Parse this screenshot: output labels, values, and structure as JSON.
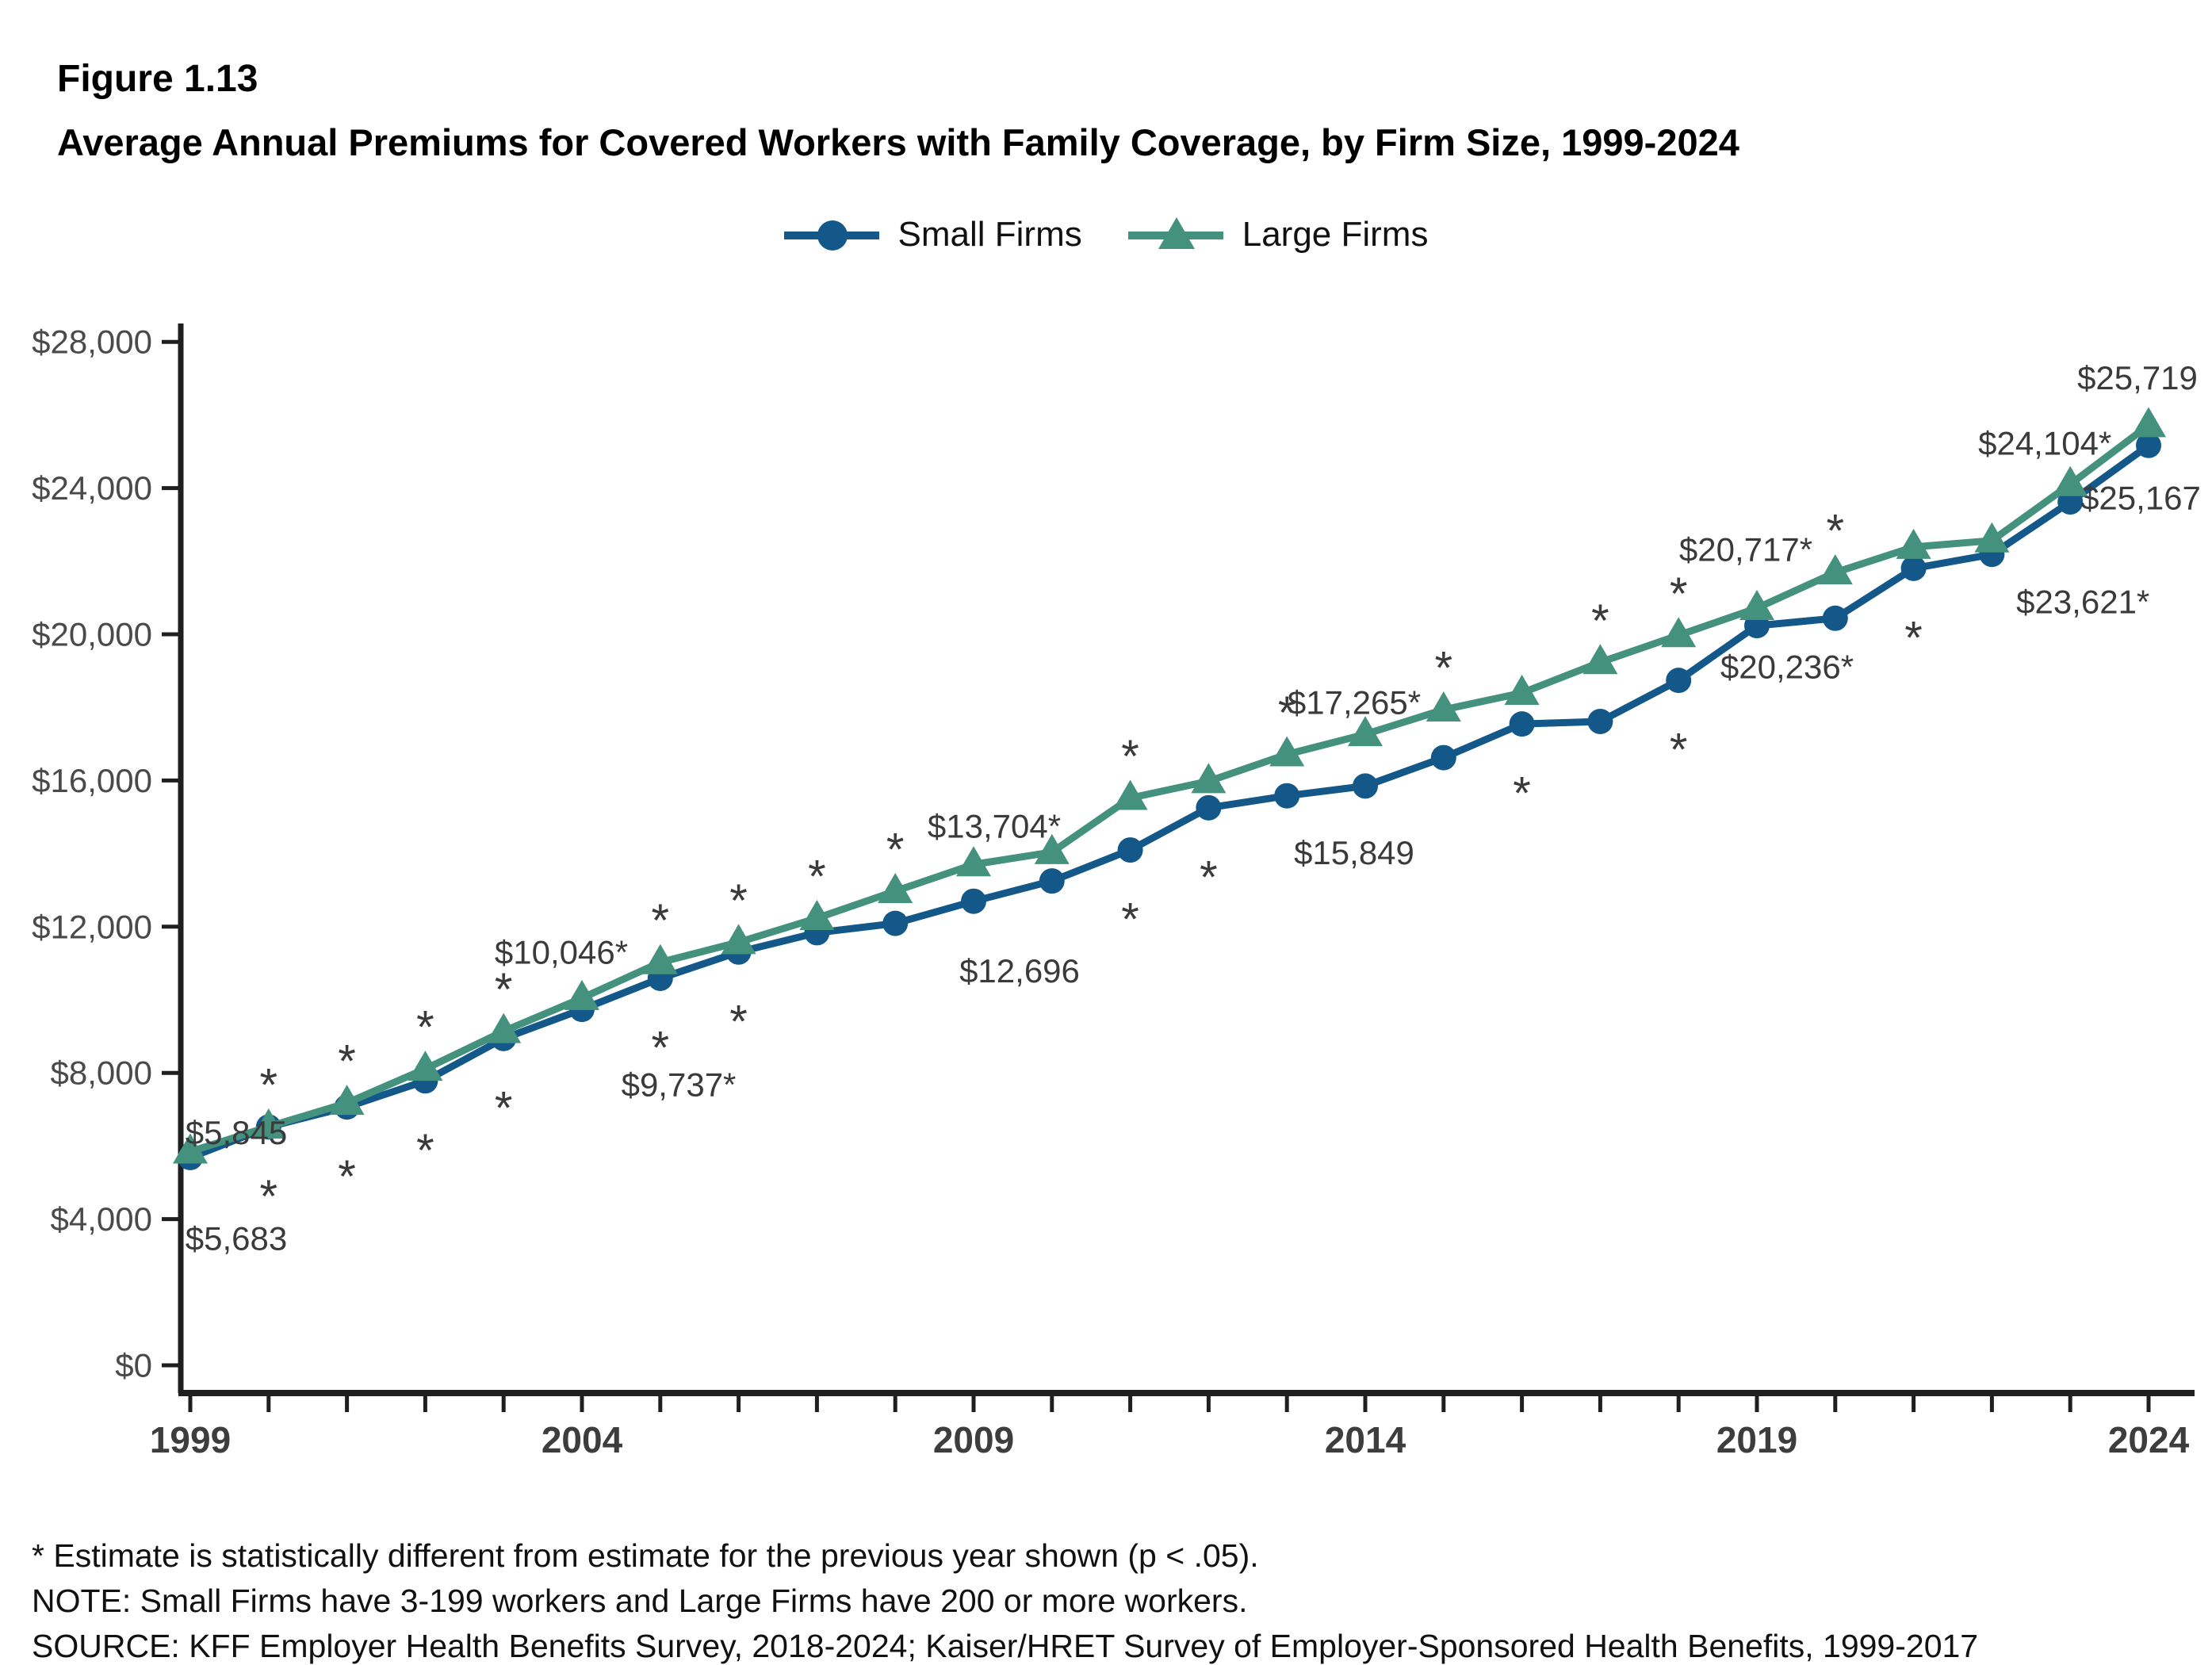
{
  "figure_label": "Figure 1.13",
  "title": "Average Annual Premiums for Covered Workers with Family Coverage, by Firm Size, 1999-2024",
  "legend": {
    "items": [
      {
        "label": "Small Firms",
        "color": "#14588A",
        "marker": "circle"
      },
      {
        "label": "Large Firms",
        "color": "#44917E",
        "marker": "triangle"
      }
    ]
  },
  "footnotes": {
    "asterisk_note": "* Estimate is statistically different from estimate for the previous year shown (p < .05).",
    "note": "NOTE: Small Firms have 3-199 workers and Large Firms have 200 or more workers.",
    "source": "SOURCE: KFF Employer Health Benefits Survey, 2018-2024; Kaiser/HRET Survey of Employer-Sponsored Health Benefits, 1999-2017"
  },
  "chart_data": {
    "type": "line",
    "x": [
      1999,
      2000,
      2001,
      2002,
      2003,
      2004,
      2005,
      2006,
      2007,
      2008,
      2009,
      2010,
      2011,
      2012,
      2013,
      2014,
      2015,
      2016,
      2017,
      2018,
      2019,
      2020,
      2021,
      2022,
      2023,
      2024
    ],
    "x_tick_labels": [
      "1999",
      "2004",
      "2009",
      "2014",
      "2019",
      "2024"
    ],
    "x_tick_label_years": [
      1999,
      2004,
      2009,
      2014,
      2019,
      2024
    ],
    "ylim": [
      0,
      29500
    ],
    "y_ticks": [
      0,
      4000,
      8000,
      12000,
      16000,
      20000,
      24000,
      28000
    ],
    "y_tick_labels": [
      "$0",
      "$4,000",
      "$8,000",
      "$12,000",
      "$16,000",
      "$20,000",
      "$24,000",
      "$28,000"
    ],
    "grid": "off",
    "legend_position": "top-center",
    "axis_color": "#1f1f1f",
    "tick_label_color": "#4a4a4a",
    "year_label_color": "#3d3d3d",
    "data_label_color": "#3a3a3a",
    "series": [
      {
        "name": "Small Firms",
        "color": "#14588A",
        "marker": "circle",
        "values": [
          5683,
          6521,
          7066,
          7781,
          8941,
          9737,
          10587,
          11306,
          11835,
          12091,
          12696,
          13250,
          14098,
          15253,
          15581,
          15849,
          16625,
          17546,
          17615,
          18739,
          20236,
          20438,
          21804,
          22186,
          23621,
          25167
        ],
        "significant_years": [
          2000,
          2001,
          2002,
          2003,
          2005,
          2006,
          2011,
          2012,
          2016,
          2018,
          2021
        ],
        "asterisk_side": "below",
        "point_labels": [
          {
            "year": 1999,
            "text": "$5,683",
            "dx": 58,
            "dy": 102
          },
          {
            "year": 2004,
            "text": "$9,737*",
            "dx": 122,
            "dy": 95
          },
          {
            "year": 2009,
            "text": "$12,696",
            "dx": 58,
            "dy": 88
          },
          {
            "year": 2014,
            "text": "$15,849",
            "dx": -14,
            "dy": 84
          },
          {
            "year": 2019,
            "text": "$20,236*",
            "dx": 38,
            "dy": 52
          },
          {
            "year": 2023,
            "text": "$23,621*",
            "dx": 16,
            "dy": 126
          },
          {
            "year": 2024,
            "text": "$25,167",
            "dx": -10,
            "dy": 66
          }
        ]
      },
      {
        "name": "Large Firms",
        "color": "#44917E",
        "marker": "triangle",
        "values": [
          5845,
          6528,
          7177,
          8109,
          9140,
          10046,
          11025,
          11575,
          12233,
          12973,
          13704,
          14038,
          15520,
          15980,
          16715,
          17265,
          17938,
          18395,
          19235,
          19972,
          20717,
          21691,
          22389,
          22564,
          24104,
          25719
        ],
        "significant_years": [
          2000,
          2001,
          2002,
          2003,
          2005,
          2006,
          2007,
          2008,
          2011,
          2013,
          2015,
          2017,
          2018,
          2020
        ],
        "asterisk_side": "above",
        "point_labels": [
          {
            "year": 1999,
            "text": "$5,845",
            "dx": 58,
            "dy": -24
          },
          {
            "year": 2004,
            "text": "$10,046*",
            "dx": -26,
            "dy": -58
          },
          {
            "year": 2009,
            "text": "$13,704*",
            "dx": 26,
            "dy": -48
          },
          {
            "year": 2014,
            "text": "$17,265*",
            "dx": -14,
            "dy": -40
          },
          {
            "year": 2019,
            "text": "$20,717*",
            "dx": -14,
            "dy": -74
          },
          {
            "year": 2023,
            "text": "$24,104*",
            "dx": -32,
            "dy": -52
          },
          {
            "year": 2024,
            "text": "$25,719",
            "dx": -14,
            "dy": -60
          }
        ]
      }
    ],
    "annotations": {
      "asterisk_symbol": "*",
      "asterisk_meaning": "Estimate is statistically different from estimate for the previous year shown (p < .05)."
    }
  }
}
